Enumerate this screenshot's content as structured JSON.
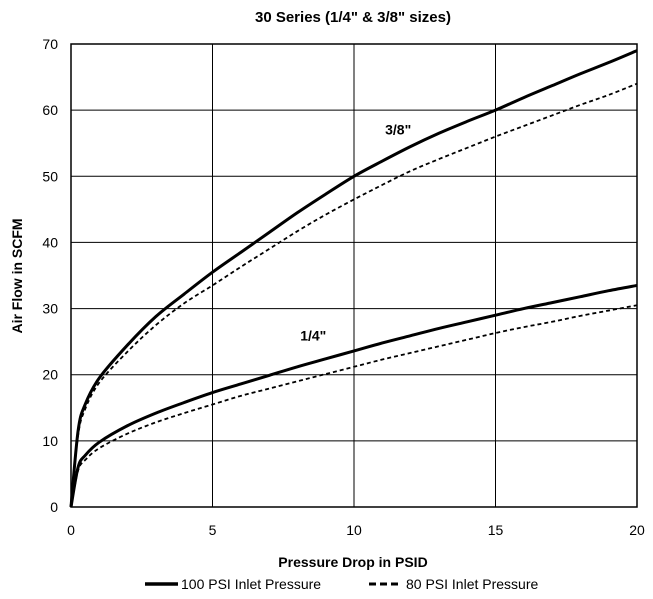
{
  "chart_data": {
    "type": "line",
    "title": "30 Series (1/4\" & 3/8\" sizes)",
    "xlabel": "Pressure Drop in PSID",
    "ylabel": "Air Flow in SCFM",
    "xlim": [
      0,
      20
    ],
    "ylim": [
      0,
      70
    ],
    "xticks": [
      0,
      5,
      10,
      15,
      20
    ],
    "yticks": [
      0,
      10,
      20,
      30,
      40,
      50,
      60,
      70
    ],
    "grid": true,
    "legend_position": "bottom",
    "annotations": [
      {
        "text": "3/8\"",
        "x": 11.1,
        "y": 56.3
      },
      {
        "text": "1/4\"",
        "x": 8.1,
        "y": 25.2
      }
    ],
    "series": [
      {
        "size": "3/8\"",
        "name": "100 PSI Inlet Pressure",
        "style": "solid",
        "x": [
          0,
          0.25,
          0.5,
          1,
          2,
          3,
          4,
          5,
          6,
          7,
          8,
          9,
          10,
          11,
          12,
          13,
          14,
          15,
          16,
          17,
          18,
          19,
          20
        ],
        "y": [
          0,
          11.5,
          15.5,
          19.5,
          24.5,
          28.8,
          32.2,
          35.5,
          38.5,
          41.5,
          44.5,
          47.3,
          50,
          52.3,
          54.5,
          56.5,
          58.3,
          60,
          61.9,
          63.7,
          65.5,
          67.2,
          69
        ]
      },
      {
        "size": "3/8\"",
        "name": "80 PSI Inlet Pressure",
        "style": "dashed",
        "x": [
          0,
          0.25,
          0.5,
          1,
          2,
          3,
          4,
          5,
          6,
          7,
          8,
          9,
          10,
          11,
          12,
          13,
          14,
          15,
          16,
          17,
          18,
          19,
          20
        ],
        "y": [
          0,
          10.8,
          14.8,
          18.8,
          23.5,
          27.5,
          30.8,
          33.5,
          36.3,
          39,
          41.7,
          44.2,
          46.5,
          48.7,
          50.8,
          52.6,
          54.3,
          56,
          57.6,
          59.2,
          60.8,
          62.3,
          64
        ]
      },
      {
        "size": "1/4\"",
        "name": "100 PSI Inlet Pressure",
        "style": "solid",
        "x": [
          0,
          0.25,
          0.5,
          1,
          2,
          3,
          4,
          5,
          6,
          7,
          8,
          9,
          10,
          11,
          12,
          13,
          14,
          15,
          16,
          17,
          18,
          19,
          20
        ],
        "y": [
          0,
          6,
          7.8,
          9.8,
          12.3,
          14.2,
          15.8,
          17.3,
          18.6,
          19.9,
          21.2,
          22.4,
          23.6,
          24.8,
          25.9,
          27,
          28,
          29,
          30,
          30.9,
          31.8,
          32.7,
          33.5
        ]
      },
      {
        "size": "1/4\"",
        "name": "80 PSI Inlet Pressure",
        "style": "dashed",
        "x": [
          0,
          0.25,
          0.5,
          1,
          2,
          3,
          4,
          5,
          6,
          7,
          8,
          9,
          10,
          11,
          12,
          13,
          14,
          15,
          16,
          17,
          18,
          19,
          20
        ],
        "y": [
          0,
          5.5,
          7.1,
          8.9,
          11.1,
          12.8,
          14.2,
          15.5,
          16.8,
          17.9,
          19,
          20.1,
          21.2,
          22.3,
          23.3,
          24.3,
          25.3,
          26.3,
          27.2,
          28,
          28.9,
          29.7,
          30.5
        ]
      }
    ],
    "legend": [
      {
        "label": "100 PSI Inlet Pressure",
        "style": "solid"
      },
      {
        "label": "80 PSI Inlet Pressure",
        "style": "dashed"
      }
    ]
  }
}
